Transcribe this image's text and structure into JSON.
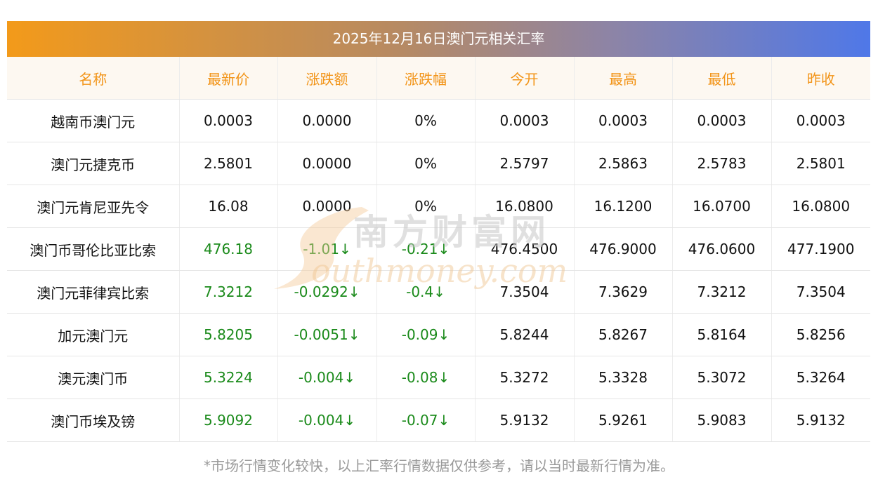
{
  "title": "2025年12月16日澳门元相关汇率",
  "headers": [
    "名称",
    "最新价",
    "涨跌额",
    "涨跌幅",
    "今开",
    "最高",
    "最低",
    "昨收"
  ],
  "rows": [
    {
      "name": "越南币澳门元",
      "latest": "0.0003",
      "change": "0.0000",
      "pct": "0%",
      "open": "0.0003",
      "high": "0.0003",
      "low": "0.0003",
      "prev_close": "0.0003",
      "trend": "flat"
    },
    {
      "name": "澳门元捷克币",
      "latest": "2.5801",
      "change": "0.0000",
      "pct": "0%",
      "open": "2.5797",
      "high": "2.5863",
      "low": "2.5783",
      "prev_close": "2.5801",
      "trend": "flat"
    },
    {
      "name": "澳门元肯尼亚先令",
      "latest": "16.08",
      "change": "0.0000",
      "pct": "0%",
      "open": "16.0800",
      "high": "16.1200",
      "low": "16.0700",
      "prev_close": "16.0800",
      "trend": "flat"
    },
    {
      "name": "澳门币哥伦比亚比索",
      "latest": "476.18",
      "change": "-1.01↓",
      "pct": "-0.21↓",
      "open": "476.4500",
      "high": "476.9000",
      "low": "476.0600",
      "prev_close": "477.1900",
      "trend": "down"
    },
    {
      "name": "澳门元菲律宾比索",
      "latest": "7.3212",
      "change": "-0.0292↓",
      "pct": "-0.4↓",
      "open": "7.3504",
      "high": "7.3629",
      "low": "7.3212",
      "prev_close": "7.3504",
      "trend": "down"
    },
    {
      "name": "加元澳门元",
      "latest": "5.8205",
      "change": "-0.0051↓",
      "pct": "-0.09↓",
      "open": "5.8244",
      "high": "5.8267",
      "low": "5.8164",
      "prev_close": "5.8256",
      "trend": "down"
    },
    {
      "name": "澳元澳门币",
      "latest": "5.3224",
      "change": "-0.004↓",
      "pct": "-0.08↓",
      "open": "5.3272",
      "high": "5.3328",
      "low": "5.3072",
      "prev_close": "5.3264",
      "trend": "down"
    },
    {
      "name": "澳门币埃及镑",
      "latest": "5.9092",
      "change": "-0.004↓",
      "pct": "-0.07↓",
      "open": "5.9132",
      "high": "5.9261",
      "low": "5.9083",
      "prev_close": "5.9132",
      "trend": "down"
    }
  ],
  "watermark": {
    "cn": "南方财富网",
    "en": "outhmoney.com"
  },
  "footnote": "*市场行情变化较快，以上汇率行情数据仅供参考，请以当时最新行情为准。",
  "colors": {
    "header_text": "#f29418",
    "down": "#1a8a1a",
    "title_start": "#f39a1a",
    "title_end": "#4f78e8"
  }
}
